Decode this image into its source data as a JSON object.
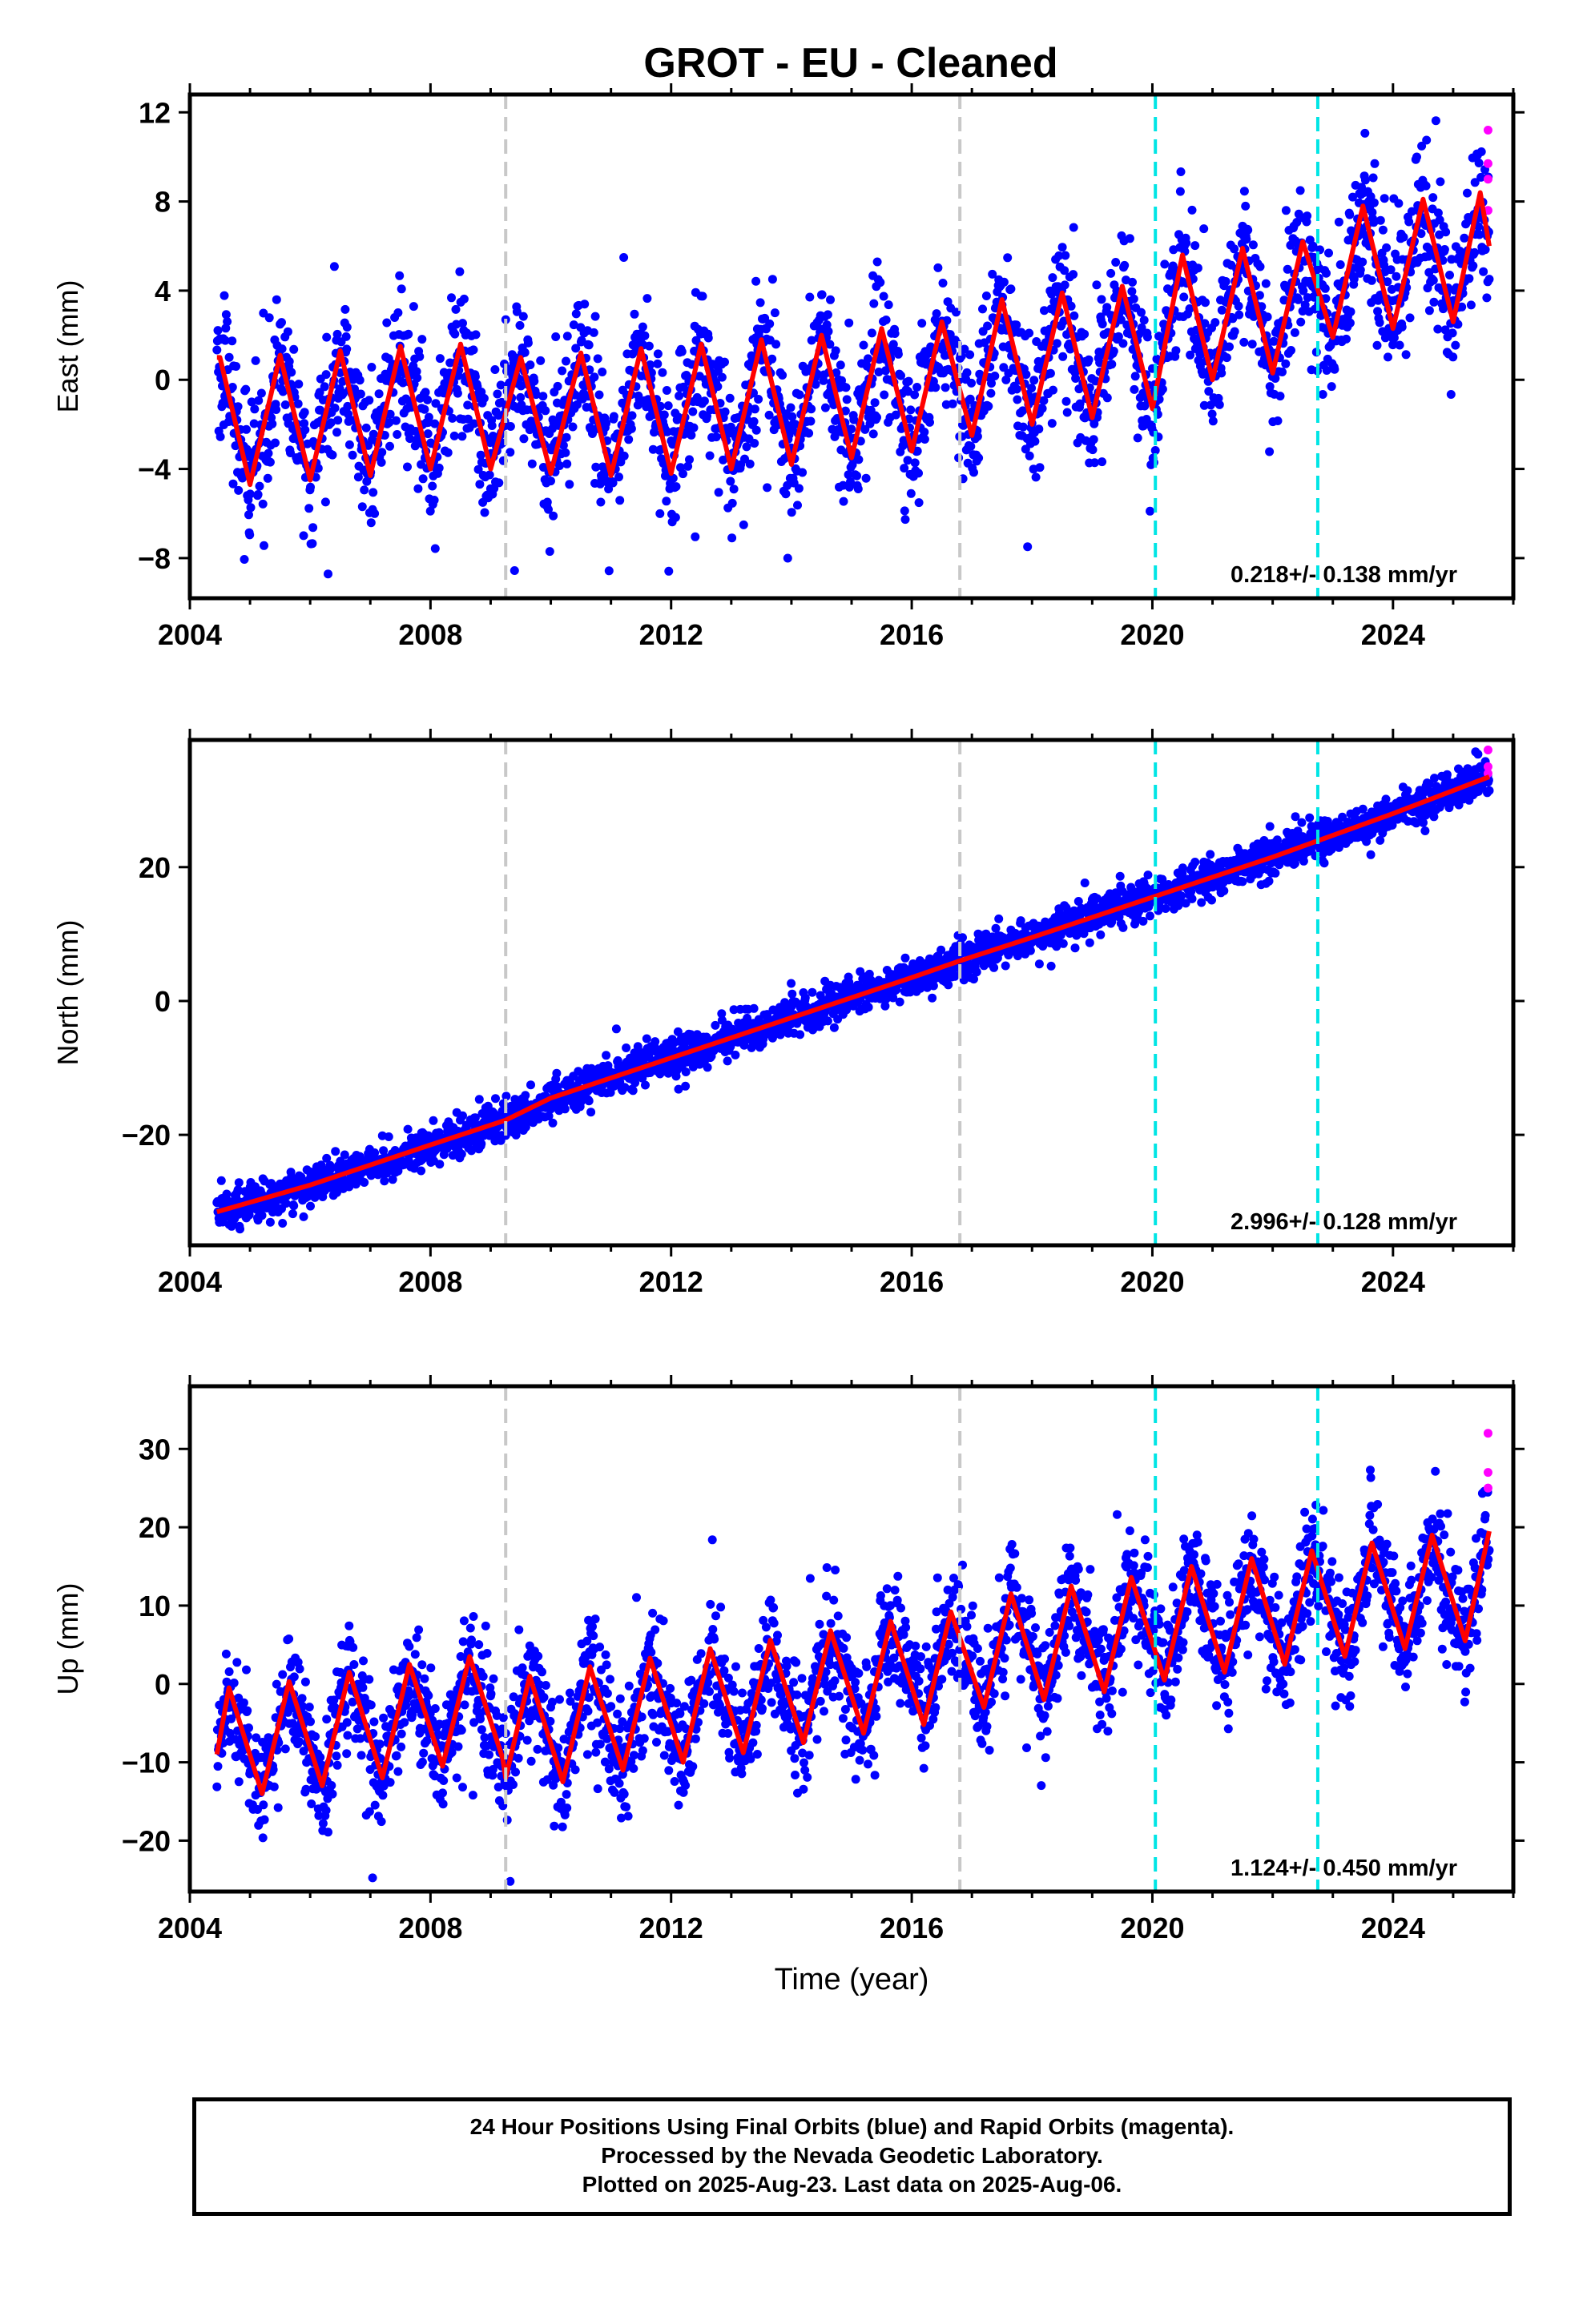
{
  "title": "GROT  - EU - Cleaned",
  "footer": {
    "line1": "24 Hour Positions Using Final Orbits (blue) and Rapid Orbits (magenta).",
    "line2": "Processed by the Nevada Geodetic Laboratory.",
    "line3": "Plotted on 2025-Aug-23. Last data on 2025-Aug-06."
  },
  "colors": {
    "final_orbits": "#0000ff",
    "rapid_orbits": "#ff00ff",
    "model_fit": "#ff0000",
    "equipment_change": "#c8c8c8",
    "event_marker": "#00e5e5"
  },
  "chart_data": [
    {
      "type": "scatter",
      "ylabel": "East (mm)",
      "xlabel": "",
      "xlim": [
        2004,
        2026
      ],
      "ylim": [
        -9.8,
        12.8
      ],
      "xticks": [
        2004,
        2008,
        2012,
        2016,
        2020,
        2024
      ],
      "yticks": [
        -8,
        -4,
        0,
        4,
        8,
        12
      ],
      "velocity_label": "0.218+/- 0.138 mm/yr",
      "grey_dashed_epochs": [
        2009.25,
        2016.8
      ],
      "cyan_dashed_epochs": [
        2020.05,
        2022.75
      ],
      "data_span": [
        2004.45,
        2025.6
      ],
      "trend": {
        "intercept": -1.8,
        "slope": 0.218,
        "ref_year": 2004.45
      },
      "seasonal_amplitude": 3.0,
      "seasonal_peak_phase": 0.42,
      "scatter_sd": 1.55,
      "model_fit_shape": [
        [
          2004.5,
          1.0
        ],
        [
          2005.0,
          -4.7
        ],
        [
          2005.5,
          1.1
        ],
        [
          2006.0,
          -4.5
        ],
        [
          2006.5,
          1.3
        ],
        [
          2007.0,
          -4.3
        ],
        [
          2007.5,
          1.5
        ],
        [
          2008.0,
          -4.0
        ],
        [
          2008.5,
          1.6
        ],
        [
          2009.0,
          -4.0
        ],
        [
          2009.5,
          1.0
        ],
        [
          2010.0,
          -4.2
        ],
        [
          2010.5,
          1.2
        ],
        [
          2011.0,
          -4.3
        ],
        [
          2011.5,
          1.4
        ],
        [
          2012.0,
          -4.2
        ],
        [
          2012.5,
          1.6
        ],
        [
          2013.0,
          -4.0
        ],
        [
          2013.5,
          1.8
        ],
        [
          2014.0,
          -3.8
        ],
        [
          2014.5,
          2.0
        ],
        [
          2015.0,
          -3.5
        ],
        [
          2015.5,
          2.3
        ],
        [
          2016.0,
          -3.2
        ],
        [
          2016.5,
          2.6
        ],
        [
          2017.0,
          -2.5
        ],
        [
          2017.5,
          3.6
        ],
        [
          2018.0,
          -2.0
        ],
        [
          2018.5,
          3.9
        ],
        [
          2019.0,
          -1.7
        ],
        [
          2019.5,
          4.2
        ],
        [
          2020.0,
          -1.3
        ],
        [
          2020.5,
          5.6
        ],
        [
          2021.0,
          0.0
        ],
        [
          2021.5,
          5.9
        ],
        [
          2022.0,
          0.3
        ],
        [
          2022.5,
          6.2
        ],
        [
          2023.0,
          1.9
        ],
        [
          2023.5,
          7.8
        ],
        [
          2024.0,
          2.3
        ],
        [
          2024.5,
          8.1
        ],
        [
          2025.0,
          2.6
        ],
        [
          2025.45,
          8.4
        ],
        [
          2025.6,
          6.0
        ]
      ],
      "rapid_points": [
        [
          2025.58,
          11.2
        ],
        [
          2025.58,
          9.7
        ],
        [
          2025.58,
          9.0
        ],
        [
          2025.58,
          7.6
        ]
      ]
    },
    {
      "type": "scatter",
      "ylabel": "North (mm)",
      "xlabel": "",
      "xlim": [
        2004,
        2026
      ],
      "ylim": [
        -36.5,
        39
      ],
      "xticks": [
        2004,
        2008,
        2012,
        2016,
        2020,
        2024
      ],
      "yticks": [
        -20,
        0,
        20
      ],
      "velocity_label": "2.996+/- 0.128 mm/yr",
      "grey_dashed_epochs": [
        2009.25,
        2016.8
      ],
      "cyan_dashed_epochs": [
        2020.05,
        2022.75
      ],
      "data_span": [
        2004.45,
        2025.6
      ],
      "trend": {
        "intercept": -31.5,
        "slope": 2.996,
        "ref_year": 2004.45
      },
      "seasonal_amplitude": 0.9,
      "seasonal_peak_phase": 0.5,
      "scatter_sd": 1.4,
      "model_fit_shape": [
        [
          2004.45,
          -31.5
        ],
        [
          2006.0,
          -27.5
        ],
        [
          2008.0,
          -21.5
        ],
        [
          2009.25,
          -17.8
        ],
        [
          2010.0,
          -14.5
        ],
        [
          2012.0,
          -8.5
        ],
        [
          2014.0,
          -2.5
        ],
        [
          2016.0,
          3.5
        ],
        [
          2016.8,
          6.0
        ],
        [
          2018.0,
          9.5
        ],
        [
          2020.0,
          15.5
        ],
        [
          2022.0,
          21.5
        ],
        [
          2024.0,
          28.0
        ],
        [
          2025.6,
          33.5
        ]
      ],
      "rapid_points": [
        [
          2025.58,
          37.5
        ],
        [
          2025.58,
          35.0
        ],
        [
          2025.58,
          34.0
        ]
      ]
    },
    {
      "type": "scatter",
      "ylabel": "Up (mm)",
      "xlabel": "Time (year)",
      "xlim": [
        2004,
        2026
      ],
      "ylim": [
        -26.5,
        38
      ],
      "xticks": [
        2004,
        2008,
        2012,
        2016,
        2020,
        2024
      ],
      "yticks": [
        -20,
        -10,
        0,
        10,
        20,
        30
      ],
      "velocity_label": "1.124+/- 0.450 mm/yr",
      "grey_dashed_epochs": [
        2009.25,
        2016.8
      ],
      "cyan_dashed_epochs": [
        2020.05,
        2022.75
      ],
      "data_span": [
        2004.45,
        2025.6
      ],
      "trend": {
        "intercept": -5.5,
        "slope": 1.124,
        "ref_year": 2004.45
      },
      "seasonal_amplitude": 7.5,
      "seasonal_peak_phase": 0.62,
      "scatter_sd": 3.6,
      "model_fit_shape": [
        [
          2004.45,
          -9.0
        ],
        [
          2004.65,
          -0.5
        ],
        [
          2005.2,
          -14.0
        ],
        [
          2005.65,
          0.3
        ],
        [
          2006.2,
          -13.0
        ],
        [
          2006.65,
          1.5
        ],
        [
          2007.2,
          -12.0
        ],
        [
          2007.65,
          2.5
        ],
        [
          2008.2,
          -10.5
        ],
        [
          2008.65,
          3.5
        ],
        [
          2009.2,
          -9.5
        ],
        [
          2009.25,
          -12.0
        ],
        [
          2009.65,
          1.0
        ],
        [
          2010.2,
          -12.5
        ],
        [
          2010.65,
          2.2
        ],
        [
          2011.2,
          -11.0
        ],
        [
          2011.65,
          3.3
        ],
        [
          2012.2,
          -10.0
        ],
        [
          2012.65,
          4.5
        ],
        [
          2013.2,
          -8.8
        ],
        [
          2013.65,
          5.6
        ],
        [
          2014.2,
          -7.5
        ],
        [
          2014.65,
          6.8
        ],
        [
          2015.2,
          -6.3
        ],
        [
          2015.65,
          8.0
        ],
        [
          2016.2,
          -5.2
        ],
        [
          2016.65,
          9.2
        ],
        [
          2017.2,
          -3.0
        ],
        [
          2017.65,
          11.5
        ],
        [
          2018.2,
          -2.0
        ],
        [
          2018.65,
          12.5
        ],
        [
          2019.2,
          -1.0
        ],
        [
          2019.65,
          13.6
        ],
        [
          2020.2,
          0.5
        ],
        [
          2020.65,
          15.0
        ],
        [
          2021.2,
          1.5
        ],
        [
          2021.65,
          16.0
        ],
        [
          2022.2,
          2.5
        ],
        [
          2022.65,
          17.0
        ],
        [
          2023.2,
          3.5
        ],
        [
          2023.65,
          18.0
        ],
        [
          2024.2,
          4.5
        ],
        [
          2024.65,
          19.0
        ],
        [
          2025.2,
          5.5
        ],
        [
          2025.6,
          19.5
        ]
      ],
      "rapid_points": [
        [
          2025.58,
          32.0
        ],
        [
          2025.58,
          27.0
        ],
        [
          2025.58,
          25.0
        ]
      ]
    }
  ]
}
